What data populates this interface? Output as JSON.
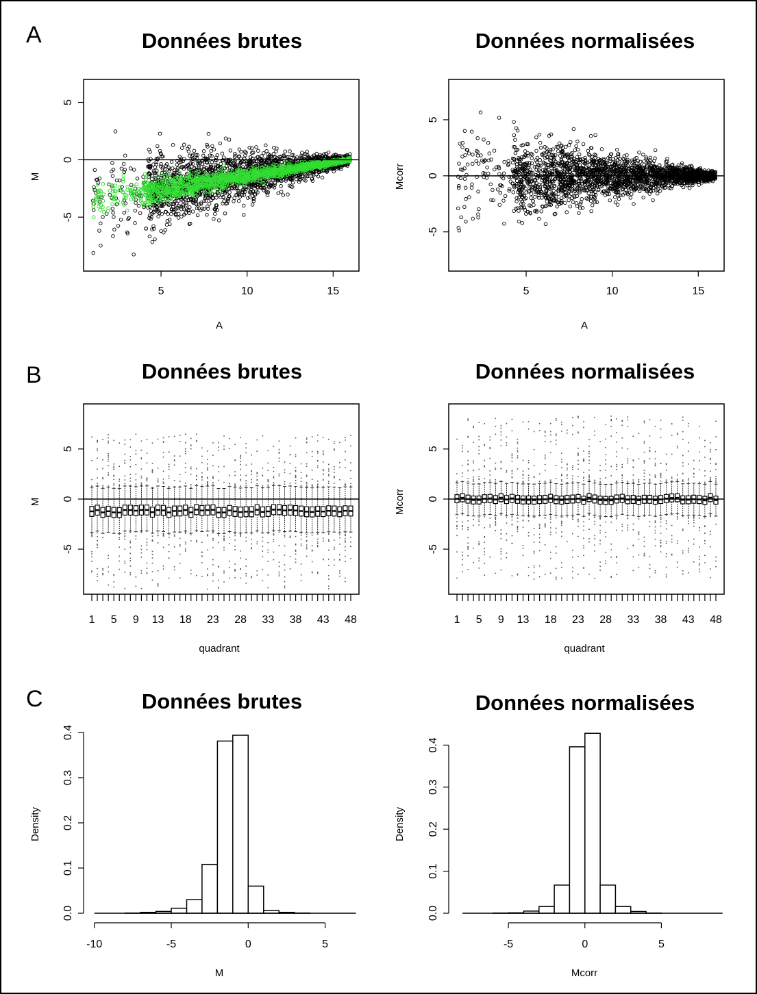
{
  "figure": {
    "panel_letters": [
      "A",
      "B",
      "C"
    ],
    "colors": {
      "black": "#000000",
      "green": "#33dd33",
      "grey": "#555555",
      "background": "#ffffff"
    }
  },
  "chart_data": [
    {
      "id": "A-raw",
      "type": "scatter",
      "panel": "A",
      "title": "Données brutes",
      "xlabel": "A",
      "ylabel": "M",
      "xlim": [
        0.5,
        16.5
      ],
      "ylim": [
        -9.7,
        7
      ],
      "xticks": [
        5,
        10,
        15
      ],
      "yticks": [
        -5,
        0,
        5
      ],
      "hline": 0,
      "series": [
        {
          "color": "#000000",
          "description_points": "black open circles, funnel shape, dense between A=5 and A=16, spread from M=-9 to M=6.5 at low A, converging to M≈0 at A≈16"
        },
        {
          "color": "#33dd33",
          "description_points": "green open circles (control spots), trend curve from M≈-3 at A≈4 rising to M≈0 at A≈16"
        }
      ],
      "trend_green": [
        [
          4,
          -2.8
        ],
        [
          5,
          -2.3
        ],
        [
          6,
          -1.9
        ],
        [
          8,
          -1.4
        ],
        [
          10,
          -1.0
        ],
        [
          12,
          -0.6
        ],
        [
          14,
          -0.3
        ],
        [
          16,
          0.0
        ]
      ]
    },
    {
      "id": "A-norm",
      "type": "scatter",
      "panel": "A",
      "title": "Données normalisées",
      "xlabel": "A",
      "ylabel": "Mcorr",
      "xlim": [
        0.5,
        16.5
      ],
      "ylim": [
        -8.5,
        8.6
      ],
      "xticks": [
        5,
        10,
        15
      ],
      "yticks": [
        -5,
        0,
        5
      ],
      "hline": 0,
      "series": [
        {
          "color": "#000000",
          "description_points": "black open circles, funnel centered on Mcorr=0, spread ±8 at low A converging to 0 at A≈16"
        }
      ]
    },
    {
      "id": "B-raw",
      "type": "box",
      "panel": "B",
      "title": "Données brutes",
      "xlabel": "quadrant",
      "ylabel": "M",
      "ylim": [
        -9.5,
        9.5
      ],
      "categories_count": 48,
      "xtick_labels": [
        "1",
        "5",
        "9",
        "13",
        "18",
        "23",
        "28",
        "33",
        "38",
        "43",
        "48"
      ],
      "yticks": [
        -5,
        0,
        5
      ],
      "hline": 0,
      "median_approx": -1.2,
      "iqr_approx": [
        -1.7,
        -0.7
      ],
      "whisker_approx": [
        -3.3,
        1.2
      ],
      "outlier_range_approx": [
        -9,
        6.5
      ]
    },
    {
      "id": "B-norm",
      "type": "box",
      "panel": "B",
      "title": "Données normalisées",
      "xlabel": "quadrant",
      "ylabel": "Mcorr",
      "ylim": [
        -9.5,
        9.5
      ],
      "categories_count": 48,
      "xtick_labels": [
        "1",
        "5",
        "9",
        "13",
        "18",
        "23",
        "28",
        "33",
        "38",
        "43",
        "48"
      ],
      "yticks": [
        -5,
        0,
        5
      ],
      "hline": 0,
      "median_approx": 0.0,
      "iqr_approx": [
        -0.4,
        0.4
      ],
      "whisker_approx": [
        -1.6,
        1.6
      ],
      "outlier_range_approx": [
        -8,
        8.3
      ]
    },
    {
      "id": "C-raw",
      "type": "histogram",
      "panel": "C",
      "title": "Données brutes",
      "xlabel": "M",
      "ylabel": "Density",
      "xlim": [
        -10.7,
        7.2
      ],
      "ylim": [
        0,
        0.4
      ],
      "xticks": [
        -10,
        -5,
        0,
        5
      ],
      "yticks": [
        0.0,
        0.1,
        0.2,
        0.3,
        0.4
      ],
      "bins": [
        {
          "x0": -10,
          "x1": -9,
          "density": 0.0
        },
        {
          "x0": -9,
          "x1": -8,
          "density": 0.0
        },
        {
          "x0": -8,
          "x1": -7,
          "density": 0.0005
        },
        {
          "x0": -7,
          "x1": -6,
          "density": 0.002
        },
        {
          "x0": -6,
          "x1": -5,
          "density": 0.004
        },
        {
          "x0": -5,
          "x1": -4,
          "density": 0.011
        },
        {
          "x0": -4,
          "x1": -3,
          "density": 0.03
        },
        {
          "x0": -3,
          "x1": -2,
          "density": 0.108
        },
        {
          "x0": -2,
          "x1": -1,
          "density": 0.381
        },
        {
          "x0": -1,
          "x1": 0,
          "density": 0.394
        },
        {
          "x0": 0,
          "x1": 1,
          "density": 0.06
        },
        {
          "x0": 1,
          "x1": 2,
          "density": 0.006
        },
        {
          "x0": 2,
          "x1": 3,
          "density": 0.002
        },
        {
          "x0": 3,
          "x1": 4,
          "density": 0.0005
        },
        {
          "x0": 4,
          "x1": 5,
          "density": 0.0
        },
        {
          "x0": 5,
          "x1": 6,
          "density": 0.0
        },
        {
          "x0": 6,
          "x1": 7,
          "density": 0.0
        }
      ]
    },
    {
      "id": "C-norm",
      "type": "histogram",
      "panel": "C",
      "title": "Données normalisées",
      "xlabel": "Mcorr",
      "ylabel": "Density",
      "xlim": [
        -8.9,
        9.1
      ],
      "ylim": [
        0,
        0.43
      ],
      "xticks": [
        -5,
        0,
        5
      ],
      "yticks": [
        0.0,
        0.1,
        0.2,
        0.3,
        0.4
      ],
      "bins": [
        {
          "x0": -8,
          "x1": -7,
          "density": 0.0
        },
        {
          "x0": -7,
          "x1": -6,
          "density": 0.0
        },
        {
          "x0": -6,
          "x1": -5,
          "density": 0.0005
        },
        {
          "x0": -5,
          "x1": -4,
          "density": 0.001
        },
        {
          "x0": -4,
          "x1": -3,
          "density": 0.005
        },
        {
          "x0": -3,
          "x1": -2,
          "density": 0.016
        },
        {
          "x0": -2,
          "x1": -1,
          "density": 0.067
        },
        {
          "x0": -1,
          "x1": 0,
          "density": 0.396
        },
        {
          "x0": 0,
          "x1": 1,
          "density": 0.428
        },
        {
          "x0": 1,
          "x1": 2,
          "density": 0.067
        },
        {
          "x0": 2,
          "x1": 3,
          "density": 0.016
        },
        {
          "x0": 3,
          "x1": 4,
          "density": 0.004
        },
        {
          "x0": 4,
          "x1": 5,
          "density": 0.0005
        },
        {
          "x0": 5,
          "x1": 6,
          "density": 0.0
        },
        {
          "x0": 6,
          "x1": 7,
          "density": 0.0
        },
        {
          "x0": 7,
          "x1": 8,
          "density": 0.0
        },
        {
          "x0": 8,
          "x1": 9,
          "density": 0.0
        }
      ]
    }
  ]
}
